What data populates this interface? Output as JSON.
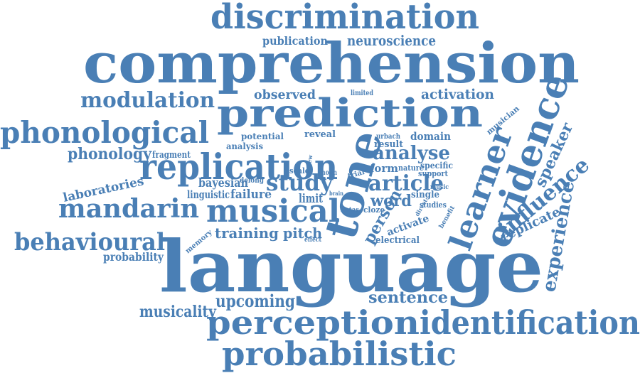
{
  "colors": {
    "word": "#4a7fb5",
    "background": "#ffffff"
  },
  "words": {
    "discrimination": "discrimination",
    "publication": "publication",
    "neuroscience": "neuroscience",
    "comprehension": "comprehension",
    "modulation": "modulation",
    "observed": "observed",
    "limited": "limited",
    "activation": "activation",
    "prediction": "prediction",
    "musician": "musician",
    "phonological": "phonological",
    "learner": "learner",
    "evidence": "evidence",
    "potential": "potential",
    "reveal": "reveal",
    "urbach": "urbach",
    "domain": "domain",
    "result": "result",
    "analysis": "analysis",
    "speaker": "speaker",
    "phonology": "phonology",
    "fragment": "fragment",
    "replication": "replication",
    "analyse": "analyse",
    "tone": "tone",
    "view": "view",
    "scale": "scale",
    "noun": "noun",
    "trial": "trial",
    "form": "form",
    "nature": "nature",
    "specific": "specific",
    "support": "support",
    "bayesian": "bayesian",
    "delong": "delong",
    "study": "study",
    "article": "article",
    "influence": "influence",
    "laboratories": "laboratories",
    "linguistic": "linguistic",
    "failure": "failure",
    "brain": "brain",
    "music": "music",
    "limit": "limit",
    "word": "word",
    "single": "single",
    "mandarin": "mandarin",
    "musical": "musical",
    "kutas": "kutas",
    "cloze": "cloze",
    "person": "person",
    "studies": "studies",
    "direct": "direct",
    "benefit": "benefit",
    "activate": "activate",
    "replicate": "replicate",
    "experience": "experience",
    "training": "training",
    "pitch": "pitch",
    "behavioural": "behavioural",
    "memory": "memory",
    "effect": "effect",
    "electrical": "electrical",
    "probability": "probability",
    "language": "language",
    "musicality": "musicality",
    "upcoming": "upcoming",
    "sentence": "sentence",
    "perception": "perception",
    "identification": "identification",
    "probabilistic": "probabilistic"
  }
}
